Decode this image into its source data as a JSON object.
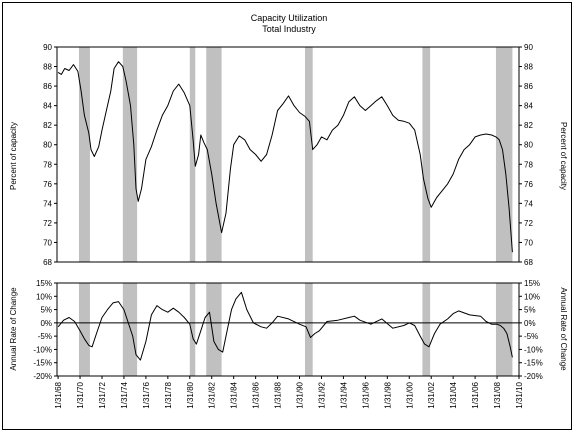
{
  "chart_data": [
    {
      "type": "line",
      "title": "Capacity Utilization",
      "subtitle": "Total Industry",
      "ylabel": "Percent of capacity",
      "ylabel_right": "Percent of capacity",
      "ylim": [
        68,
        90
      ],
      "yticks": [
        68,
        70,
        72,
        74,
        76,
        78,
        80,
        82,
        84,
        86,
        88,
        90
      ],
      "xlim": [
        1967.9,
        2010.0
      ],
      "recessions": [
        [
          1969.9,
          1970.9
        ],
        [
          1973.9,
          1975.2
        ],
        [
          1980.0,
          1980.5
        ],
        [
          1981.5,
          1982.9
        ],
        [
          1990.5,
          1991.2
        ],
        [
          2001.2,
          2001.9
        ],
        [
          2007.9,
          2009.4
        ]
      ],
      "series": [
        {
          "x": [
            1968.0,
            1968.3,
            1968.6,
            1969.0,
            1969.4,
            1969.8,
            1970.1,
            1970.4,
            1970.8,
            1971.0,
            1971.3,
            1971.7,
            1972.0,
            1972.4,
            1972.8,
            1973.1,
            1973.5,
            1973.9,
            1974.2,
            1974.6,
            1974.9,
            1975.1,
            1975.3,
            1975.6,
            1976.0,
            1976.5,
            1977.0,
            1977.5,
            1978.0,
            1978.5,
            1979.0,
            1979.5,
            1980.0,
            1980.3,
            1980.5,
            1980.8,
            1981.0,
            1981.3,
            1981.6,
            1982.0,
            1982.4,
            1982.9,
            1983.3,
            1983.7,
            1984.0,
            1984.5,
            1985.0,
            1985.5,
            1986.0,
            1986.5,
            1987.0,
            1987.5,
            1988.0,
            1988.5,
            1989.0,
            1989.5,
            1990.0,
            1990.5,
            1990.9,
            1991.2,
            1991.6,
            1992.0,
            1992.5,
            1993.0,
            1993.5,
            1994.0,
            1994.5,
            1995.0,
            1995.5,
            1996.0,
            1996.5,
            1997.0,
            1997.5,
            1998.0,
            1998.5,
            1999.0,
            1999.5,
            2000.0,
            2000.5,
            2001.0,
            2001.3,
            2001.7,
            2002.0,
            2002.5,
            2003.0,
            2003.5,
            2004.0,
            2004.5,
            2005.0,
            2005.5,
            2006.0,
            2006.5,
            2007.0,
            2007.5,
            2007.9,
            2008.2,
            2008.5,
            2008.8,
            2009.1,
            2009.4
          ],
          "values": [
            87.4,
            87.2,
            87.8,
            87.6,
            88.2,
            87.5,
            85.5,
            83.0,
            81.2,
            79.5,
            78.8,
            79.8,
            81.5,
            83.5,
            85.5,
            87.8,
            88.5,
            88.0,
            86.5,
            84.0,
            80.0,
            75.5,
            74.2,
            75.5,
            78.5,
            79.8,
            81.5,
            83.0,
            84.0,
            85.5,
            86.2,
            85.3,
            84.0,
            80.5,
            77.8,
            79.0,
            81.0,
            80.2,
            79.5,
            77.0,
            74.0,
            71.0,
            73.0,
            77.5,
            80.0,
            80.9,
            80.5,
            79.5,
            79.0,
            78.3,
            79.0,
            81.0,
            83.5,
            84.2,
            85.0,
            84.0,
            83.3,
            82.9,
            82.4,
            79.5,
            80.0,
            80.8,
            80.5,
            81.5,
            82.0,
            83.0,
            84.4,
            84.9,
            84.0,
            83.5,
            84.0,
            84.5,
            84.9,
            84.0,
            83.0,
            82.5,
            82.4,
            82.2,
            81.5,
            79.0,
            76.5,
            74.5,
            73.6,
            74.6,
            75.3,
            76.0,
            77.0,
            78.5,
            79.5,
            80.0,
            80.8,
            81.0,
            81.1,
            81.0,
            80.8,
            80.5,
            79.5,
            77.0,
            73.5,
            69.0
          ]
        }
      ]
    },
    {
      "type": "line",
      "ylabel": "Annual Rate of Change",
      "ylabel_right": "Annual Rate of Change",
      "ylim": [
        -20,
        15
      ],
      "yticks": [
        "15%",
        "10%",
        "5%",
        "0%",
        "-5%",
        "-10%",
        "-15%",
        "-20%"
      ],
      "ytick_values": [
        15,
        10,
        5,
        0,
        -5,
        -10,
        -15,
        -20
      ],
      "xlim": [
        1967.9,
        2010.0
      ],
      "xticks": [
        "1/31/68",
        "1/31/70",
        "1/31/72",
        "1/31/74",
        "1/31/76",
        "1/31/78",
        "1/31/80",
        "1/31/82",
        "1/31/84",
        "1/31/86",
        "1/31/88",
        "1/31/90",
        "1/31/92",
        "1/31/94",
        "1/31/96",
        "1/31/98",
        "1/31/00",
        "1/31/02",
        "1/31/04",
        "1/31/06",
        "1/31/08",
        "1/31/10"
      ],
      "xtick_values": [
        1968,
        1970,
        1972,
        1974,
        1976,
        1978,
        1980,
        1982,
        1984,
        1986,
        1988,
        1990,
        1992,
        1994,
        1996,
        1998,
        2000,
        2002,
        2004,
        2006,
        2008,
        2010
      ],
      "series": [
        {
          "x": [
            1968.0,
            1968.5,
            1969.0,
            1969.5,
            1970.0,
            1970.4,
            1970.8,
            1971.1,
            1971.5,
            1972.0,
            1972.5,
            1973.0,
            1973.5,
            1974.0,
            1974.4,
            1974.8,
            1975.1,
            1975.5,
            1976.0,
            1976.5,
            1977.0,
            1977.5,
            1978.0,
            1978.5,
            1979.0,
            1979.5,
            1980.0,
            1980.3,
            1980.6,
            1981.0,
            1981.4,
            1981.8,
            1982.2,
            1982.6,
            1983.0,
            1983.4,
            1983.8,
            1984.2,
            1984.7,
            1985.2,
            1985.8,
            1986.5,
            1987.0,
            1987.5,
            1988.0,
            1989.0,
            1990.0,
            1990.6,
            1991.0,
            1991.4,
            1991.8,
            1992.5,
            1993.5,
            1994.5,
            1995.0,
            1995.5,
            1996.5,
            1997.5,
            1998.5,
            1999.5,
            2000.0,
            2000.5,
            2001.0,
            2001.4,
            2001.8,
            2002.3,
            2002.8,
            2003.5,
            2004.0,
            2004.5,
            2005.5,
            2006.5,
            2007.0,
            2007.5,
            2008.0,
            2008.3,
            2008.6,
            2008.9,
            2009.2,
            2009.4
          ],
          "values": [
            -1.5,
            1.0,
            2.0,
            0.5,
            -3.0,
            -6.0,
            -8.5,
            -9.0,
            -4.0,
            2.0,
            5.0,
            7.5,
            8.0,
            5.0,
            0.0,
            -5.0,
            -12.0,
            -14.0,
            -7.0,
            3.0,
            6.5,
            5.0,
            4.0,
            5.5,
            4.0,
            2.0,
            -0.5,
            -6.0,
            -8.0,
            -3.0,
            2.0,
            4.0,
            -7.0,
            -10.0,
            -11.0,
            -3.0,
            5.0,
            9.0,
            11.5,
            5.0,
            0.0,
            -1.5,
            -2.0,
            0.0,
            2.5,
            1.5,
            -0.5,
            -1.5,
            -5.5,
            -4.0,
            -3.0,
            0.5,
            1.0,
            2.0,
            2.5,
            1.0,
            -0.5,
            1.5,
            -2.0,
            -1.0,
            0.0,
            -1.0,
            -5.0,
            -8.0,
            -9.0,
            -4.0,
            -0.5,
            1.5,
            3.5,
            4.5,
            3.0,
            2.5,
            0.5,
            -0.5,
            -0.5,
            -1.0,
            -2.0,
            -4.0,
            -9.0,
            -13.0
          ]
        }
      ]
    }
  ]
}
